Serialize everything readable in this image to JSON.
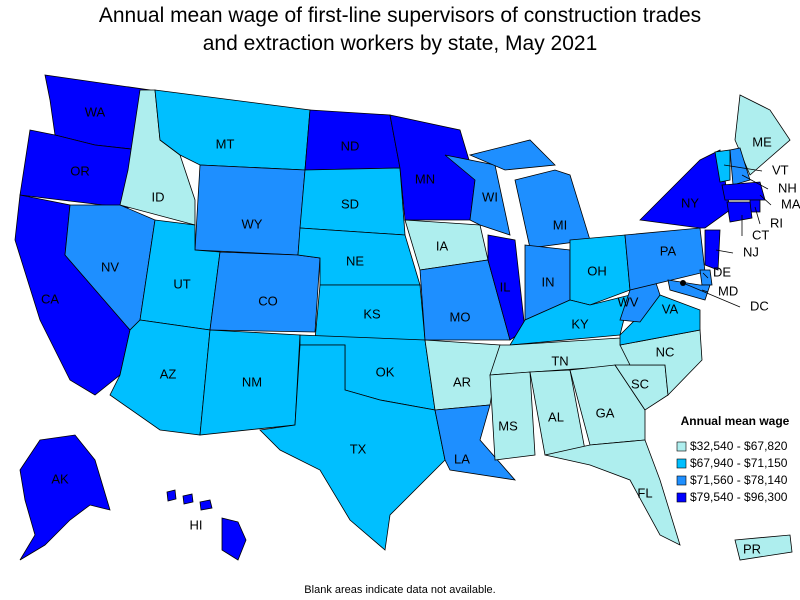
{
  "title": "Annual mean wage of first-line supervisors of construction trades and extraction workers by state, May 2021",
  "legend": {
    "title": "Annual mean wage",
    "items": [
      {
        "label": "$32,540 - $67,820",
        "color": "#aeeeee"
      },
      {
        "label": "$67,940 - $71,150",
        "color": "#00bfff"
      },
      {
        "label": "$71,560 - $78,140",
        "color": "#1e8fff"
      },
      {
        "label": "$79,540 - $96,300",
        "color": "#0000ff"
      }
    ]
  },
  "states": [
    {
      "label": "WA",
      "color": "#0000ff"
    },
    {
      "label": "OR",
      "color": "#0000ff"
    },
    {
      "label": "CA",
      "color": "#0000ff"
    },
    {
      "label": "ID",
      "color": "#aeeeee"
    },
    {
      "label": "NV",
      "color": "#1e8fff"
    },
    {
      "label": "MT",
      "color": "#00bfff"
    },
    {
      "label": "WY",
      "color": "#1e8fff"
    },
    {
      "label": "UT",
      "color": "#00bfff"
    },
    {
      "label": "AZ",
      "color": "#00bfff"
    },
    {
      "label": "CO",
      "color": "#1e8fff"
    },
    {
      "label": "NM",
      "color": "#00bfff"
    },
    {
      "label": "ND",
      "color": "#0000ff"
    },
    {
      "label": "SD",
      "color": "#00bfff"
    },
    {
      "label": "NE",
      "color": "#00bfff"
    },
    {
      "label": "KS",
      "color": "#00bfff"
    },
    {
      "label": "OK",
      "color": "#00bfff"
    },
    {
      "label": "TX",
      "color": "#00bfff"
    },
    {
      "label": "MN",
      "color": "#0000ff"
    },
    {
      "label": "IA",
      "color": "#aeeeee"
    },
    {
      "label": "MO",
      "color": "#1e8fff"
    },
    {
      "label": "AR",
      "color": "#aeeeee"
    },
    {
      "label": "LA",
      "color": "#1e8fff"
    },
    {
      "label": "WI",
      "color": "#1e8fff"
    },
    {
      "label": "IL",
      "color": "#0000ff"
    },
    {
      "label": "MI",
      "color": "#1e8fff"
    },
    {
      "label": "IN",
      "color": "#1e8fff"
    },
    {
      "label": "OH",
      "color": "#00bfff"
    },
    {
      "label": "KY",
      "color": "#00bfff"
    },
    {
      "label": "TN",
      "color": "#aeeeee"
    },
    {
      "label": "MS",
      "color": "#aeeeee"
    },
    {
      "label": "AL",
      "color": "#aeeeee"
    },
    {
      "label": "GA",
      "color": "#aeeeee"
    },
    {
      "label": "FL",
      "color": "#aeeeee"
    },
    {
      "label": "SC",
      "color": "#aeeeee"
    },
    {
      "label": "NC",
      "color": "#aeeeee"
    },
    {
      "label": "VA",
      "color": "#00bfff"
    },
    {
      "label": "WV",
      "color": "#1e8fff"
    },
    {
      "label": "PA",
      "color": "#1e8fff"
    },
    {
      "label": "NY",
      "color": "#0000ff"
    },
    {
      "label": "ME",
      "color": "#aeeeee"
    },
    {
      "label": "VT",
      "color": "#00bfff"
    },
    {
      "label": "NH",
      "color": "#1e8fff"
    },
    {
      "label": "MA",
      "color": "#0000ff"
    },
    {
      "label": "RI",
      "color": "#0000ff"
    },
    {
      "label": "CT",
      "color": "#0000ff"
    },
    {
      "label": "NJ",
      "color": "#0000ff"
    },
    {
      "label": "DE",
      "color": "#1e8fff"
    },
    {
      "label": "MD",
      "color": "#1e8fff"
    },
    {
      "label": "DC",
      "color": "#000000"
    },
    {
      "label": "AK",
      "color": "#0000ff"
    },
    {
      "label": "HI",
      "color": "#0000ff"
    },
    {
      "label": "PR",
      "color": "#aeeeee"
    }
  ],
  "footnote": "Blank areas indicate data not available."
}
